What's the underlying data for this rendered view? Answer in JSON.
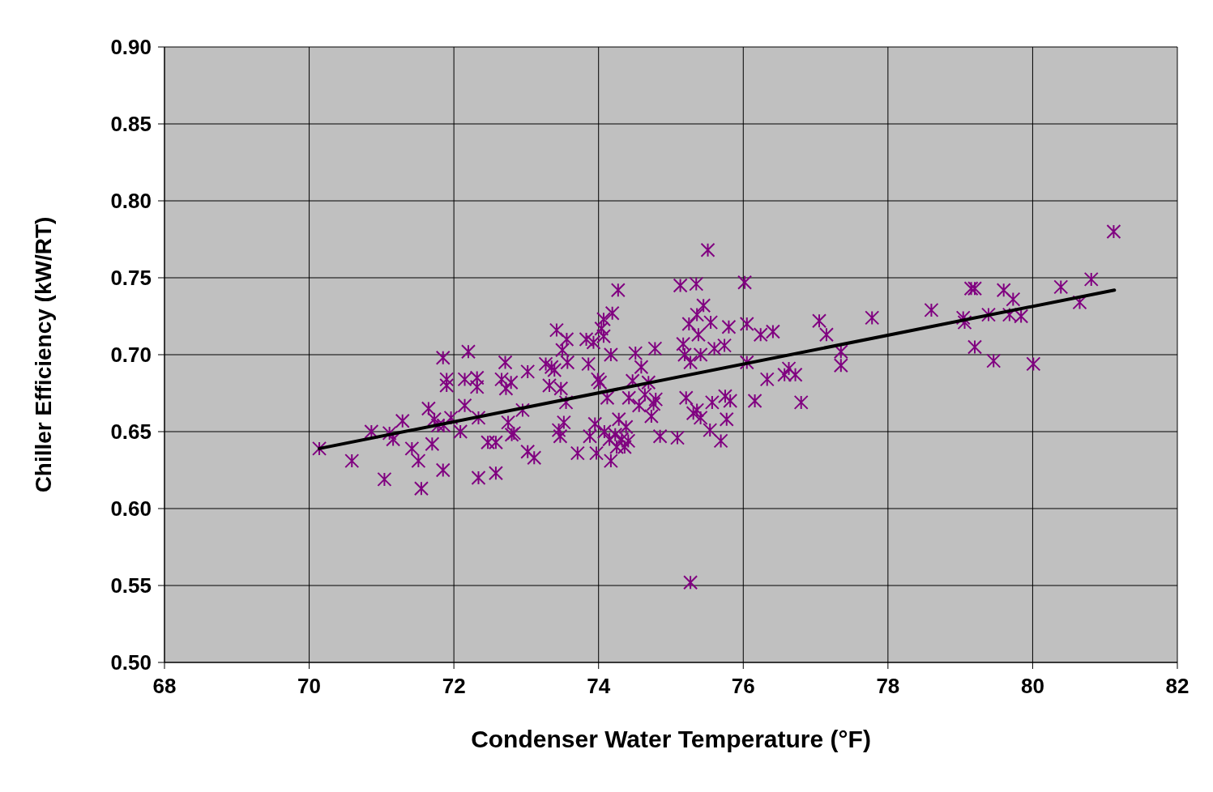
{
  "chart_data": {
    "type": "scatter",
    "xlabel": "Condenser Water Temperature (°F)",
    "ylabel": "Chiller Efficiency (kW/RT)",
    "xlim": [
      68,
      82
    ],
    "xticks": [
      68,
      70,
      72,
      74,
      76,
      78,
      80,
      82
    ],
    "ylim": [
      0.5,
      0.9
    ],
    "yticks": [
      {
        "value": 0.5,
        "label": "0.50"
      },
      {
        "value": 0.55,
        "label": "0.55"
      },
      {
        "value": 0.6,
        "label": "0.60"
      },
      {
        "value": 0.65,
        "label": "0.65"
      },
      {
        "value": 0.7,
        "label": "0.70"
      },
      {
        "value": 0.75,
        "label": "0.75"
      },
      {
        "value": 0.8,
        "label": "0.80"
      },
      {
        "value": 0.85,
        "label": "0.85"
      },
      {
        "value": 0.9,
        "label": "0.90"
      }
    ],
    "grid": true,
    "series": [
      {
        "color": "#800080",
        "marker": "cross",
        "x": [
          70.14,
          70.59,
          70.86,
          71.04,
          71.11,
          71.16,
          71.29,
          71.42,
          71.51,
          71.55,
          71.65,
          71.7,
          71.73,
          71.78,
          71.85,
          71.85,
          71.9,
          71.9,
          71.86,
          71.96,
          72.09,
          72.15,
          72.15,
          72.2,
          72.32,
          72.32,
          72.34,
          72.34,
          72.47,
          72.58,
          72.58,
          72.66,
          72.71,
          72.72,
          72.75,
          72.79,
          72.8,
          72.83,
          72.95,
          73.02,
          73.02,
          73.11,
          73.27,
          73.32,
          73.35,
          73.39,
          73.42,
          73.45,
          73.47,
          73.48,
          73.5,
          73.52,
          73.55,
          73.56,
          73.57,
          73.71,
          73.83,
          73.86,
          73.88,
          73.93,
          73.95,
          73.97,
          73.99,
          74.02,
          74.04,
          74.07,
          74.07,
          74.08,
          74.12,
          74.15,
          74.17,
          74.19,
          74.17,
          74.23,
          74.25,
          74.27,
          74.28,
          74.32,
          74.36,
          74.38,
          74.41,
          74.42,
          74.47,
          74.51,
          74.56,
          74.59,
          74.64,
          74.69,
          74.73,
          74.76,
          74.78,
          74.79,
          74.85,
          75.09,
          75.13,
          75.17,
          75.19,
          75.21,
          75.25,
          75.27,
          75.27,
          75.31,
          75.35,
          75.36,
          75.36,
          75.41,
          75.41,
          75.38,
          75.45,
          75.51,
          75.55,
          75.54,
          75.57,
          75.6,
          75.69,
          75.74,
          75.75,
          75.77,
          75.8,
          75.82,
          76.02,
          76.05,
          76.05,
          76.16,
          76.24,
          76.33,
          76.41,
          76.57,
          76.63,
          76.72,
          76.8,
          77.05,
          77.15,
          77.35,
          77.35,
          77.78,
          78.6,
          79.04,
          79.06,
          79.15,
          79.2,
          79.2,
          79.39,
          79.46,
          79.6,
          79.68,
          79.73,
          79.84,
          80.01,
          80.39,
          80.65,
          80.81,
          81.12
        ],
        "values": [
          0.639,
          0.631,
          0.65,
          0.619,
          0.649,
          0.645,
          0.657,
          0.639,
          0.631,
          0.613,
          0.665,
          0.642,
          0.658,
          0.654,
          0.625,
          0.698,
          0.684,
          0.68,
          0.654,
          0.659,
          0.65,
          0.667,
          0.684,
          0.702,
          0.685,
          0.679,
          0.659,
          0.62,
          0.643,
          0.643,
          0.623,
          0.684,
          0.695,
          0.678,
          0.656,
          0.682,
          0.648,
          0.649,
          0.664,
          0.689,
          0.637,
          0.633,
          0.694,
          0.68,
          0.692,
          0.69,
          0.716,
          0.651,
          0.647,
          0.678,
          0.703,
          0.656,
          0.669,
          0.71,
          0.695,
          0.636,
          0.71,
          0.694,
          0.647,
          0.708,
          0.655,
          0.636,
          0.684,
          0.682,
          0.717,
          0.723,
          0.712,
          0.65,
          0.672,
          0.645,
          0.7,
          0.727,
          0.631,
          0.648,
          0.64,
          0.742,
          0.658,
          0.645,
          0.64,
          0.653,
          0.644,
          0.672,
          0.683,
          0.701,
          0.667,
          0.692,
          0.674,
          0.682,
          0.66,
          0.668,
          0.704,
          0.671,
          0.647,
          0.646,
          0.745,
          0.707,
          0.7,
          0.672,
          0.72,
          0.695,
          0.552,
          0.662,
          0.746,
          0.726,
          0.664,
          0.659,
          0.7,
          0.713,
          0.732,
          0.768,
          0.721,
          0.651,
          0.669,
          0.704,
          0.644,
          0.706,
          0.673,
          0.658,
          0.718,
          0.67,
          0.747,
          0.72,
          0.695,
          0.67,
          0.713,
          0.684,
          0.715,
          0.687,
          0.691,
          0.687,
          0.669,
          0.722,
          0.713,
          0.702,
          0.693,
          0.724,
          0.729,
          0.724,
          0.721,
          0.743,
          0.743,
          0.705,
          0.726,
          0.696,
          0.742,
          0.726,
          0.736,
          0.725,
          0.694,
          0.744,
          0.734,
          0.749,
          0.78
        ]
      },
      {
        "type": "line",
        "color": "#000000",
        "marker": "none",
        "x": [
          70.14,
          81.13
        ],
        "values": [
          0.639,
          0.742
        ]
      }
    ]
  }
}
